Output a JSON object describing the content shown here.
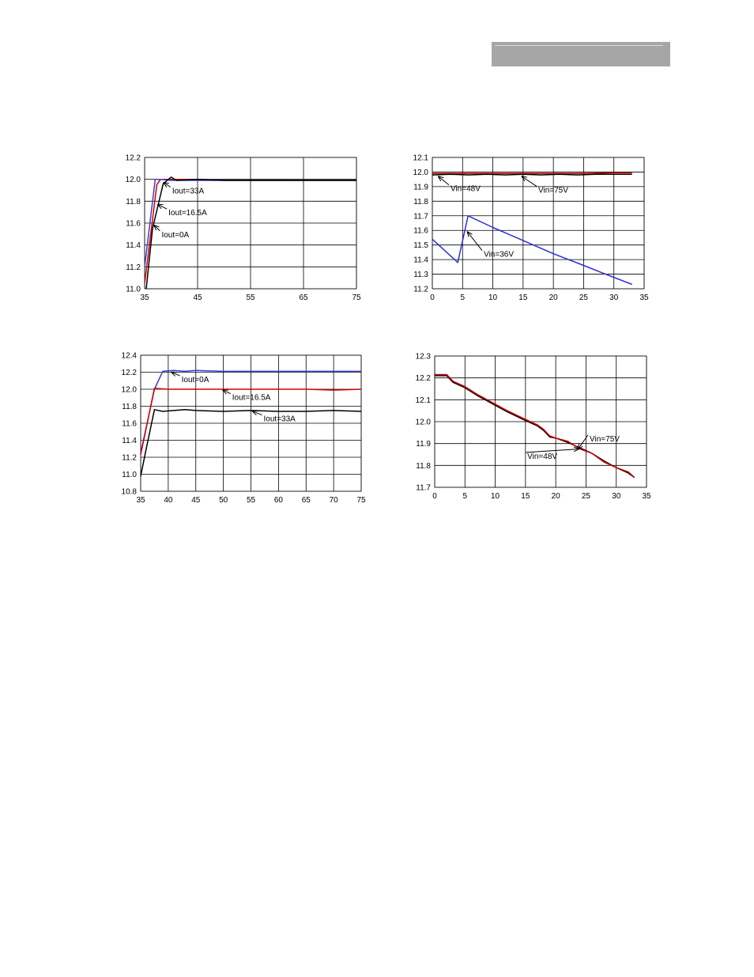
{
  "page": {
    "header_bar_color": "#a6a6a6"
  },
  "chart_data": [
    {
      "id": "chart-1",
      "type": "line",
      "xlim": [
        35,
        75
      ],
      "ylim": [
        11.0,
        12.2
      ],
      "xticks": [
        "35",
        "45",
        "55",
        "65",
        "75"
      ],
      "yticks": [
        "11.0",
        "11.2",
        "11.4",
        "11.6",
        "11.8",
        "12.0",
        "12.2"
      ],
      "grid": true,
      "series": [
        {
          "color": "#d00000",
          "x": [
            35,
            37.3,
            38,
            40,
            45,
            50,
            55,
            60,
            65,
            70,
            75
          ],
          "y": [
            11.05,
            11.95,
            12.0,
            12.0,
            12.0,
            11.99,
            11.99,
            11.99,
            11.99,
            11.99,
            11.99
          ]
        },
        {
          "color": "#3b3bd6",
          "x": [
            35,
            37.0,
            38,
            40,
            45,
            50,
            55,
            60,
            65,
            70,
            75
          ],
          "y": [
            11.2,
            12.0,
            12.0,
            11.99,
            11.99,
            11.99,
            11.99,
            11.99,
            11.99,
            11.99,
            11.99
          ]
        },
        {
          "color": "#000000",
          "x": [
            35.3,
            36.5,
            38.5,
            40,
            41,
            45,
            50,
            55,
            60,
            65,
            70,
            75
          ],
          "y": [
            11.0,
            11.55,
            11.96,
            12.02,
            11.99,
            12.0,
            11.99,
            11.99,
            11.99,
            11.99,
            11.99,
            11.99
          ]
        }
      ],
      "annotations": [
        {
          "text": "Iout=33A",
          "x": 40.2,
          "y": 11.9,
          "ax": 38.6,
          "ay": 11.97
        },
        {
          "text": "Iout=16.5A",
          "x": 39.5,
          "y": 11.7,
          "ax": 37.5,
          "ay": 11.77
        },
        {
          "text": "Iout=0A",
          "x": 38.2,
          "y": 11.5,
          "ax": 36.8,
          "ay": 11.58
        }
      ]
    },
    {
      "id": "chart-2",
      "type": "line",
      "xlim": [
        0,
        35
      ],
      "ylim": [
        11.2,
        12.1
      ],
      "xticks": [
        "0",
        "5",
        "10",
        "15",
        "20",
        "25",
        "30",
        "35"
      ],
      "yticks": [
        "11.2",
        "11.3",
        "11.4",
        "11.5",
        "11.6",
        "11.7",
        "11.8",
        "11.9",
        "12.0",
        "12.1"
      ],
      "grid": true,
      "series": [
        {
          "color": "#d00000",
          "x": [
            0,
            5,
            10,
            15,
            20,
            25,
            30,
            33
          ],
          "y": [
            11.99,
            11.99,
            11.99,
            11.99,
            11.99,
            11.99,
            11.995,
            11.995
          ]
        },
        {
          "color": "#000000",
          "x": [
            0,
            3,
            6,
            9,
            12,
            15,
            18,
            21,
            24,
            27,
            30,
            33
          ],
          "y": [
            11.98,
            11.985,
            11.98,
            11.985,
            11.98,
            11.985,
            11.98,
            11.985,
            11.98,
            11.985,
            11.985,
            11.985
          ]
        },
        {
          "color": "#2f2fd2",
          "x": [
            0,
            4.2,
            5.9,
            10,
            15,
            20,
            25,
            28,
            33
          ],
          "y": [
            11.54,
            11.38,
            11.7,
            11.62,
            11.53,
            11.44,
            11.36,
            11.31,
            11.23
          ]
        }
      ],
      "annotations": [
        {
          "text": "Vin=48V",
          "x": 3.0,
          "y": 11.89,
          "ax": 1.0,
          "ay": 11.97
        },
        {
          "text": "Vin=75V",
          "x": 17.5,
          "y": 11.88,
          "ax": 14.8,
          "ay": 11.97
        },
        {
          "text": "Vin=36V",
          "x": 8.5,
          "y": 11.44,
          "ax": 5.8,
          "ay": 11.59
        }
      ]
    },
    {
      "id": "chart-3",
      "type": "line",
      "xlim": [
        35,
        75
      ],
      "ylim": [
        10.8,
        12.4
      ],
      "xticks": [
        "35",
        "40",
        "45",
        "50",
        "55",
        "60",
        "65",
        "70",
        "75"
      ],
      "yticks": [
        "10.8",
        "11.0",
        "11.2",
        "11.4",
        "11.6",
        "11.8",
        "12.0",
        "12.2",
        "12.4"
      ],
      "grid": true,
      "series": [
        {
          "color": "#3b3bd6",
          "x": [
            35,
            37.5,
            39,
            41,
            43,
            45,
            50,
            55,
            60,
            65,
            70,
            75
          ],
          "y": [
            11.25,
            12.0,
            12.21,
            12.22,
            12.21,
            12.22,
            12.21,
            12.21,
            12.21,
            12.21,
            12.21,
            12.21
          ]
        },
        {
          "color": "#d00000",
          "x": [
            35,
            37.5,
            40,
            45,
            50,
            55,
            60,
            65,
            70,
            75
          ],
          "y": [
            11.23,
            12.01,
            12.0,
            12.0,
            12.0,
            12.0,
            12.0,
            12.0,
            11.99,
            12.0
          ]
        },
        {
          "color": "#000000",
          "x": [
            35,
            36,
            37.5,
            39,
            41,
            43,
            45,
            50,
            55,
            60,
            65,
            70,
            75
          ],
          "y": [
            10.98,
            11.3,
            11.76,
            11.74,
            11.75,
            11.76,
            11.75,
            11.74,
            11.75,
            11.74,
            11.74,
            11.75,
            11.74
          ]
        }
      ],
      "annotations": [
        {
          "text": "Iout=0A",
          "x": 42.4,
          "y": 12.12,
          "ax": 40.6,
          "ay": 12.2
        },
        {
          "text": "Iout=16.5A",
          "x": 51.6,
          "y": 11.91,
          "ax": 49.9,
          "ay": 11.99
        },
        {
          "text": "Iout=33A",
          "x": 57.3,
          "y": 11.66,
          "ax": 55.3,
          "ay": 11.74
        }
      ]
    },
    {
      "id": "chart-4",
      "type": "line",
      "xlim": [
        0,
        35
      ],
      "ylim": [
        11.7,
        12.3
      ],
      "xticks": [
        "0",
        "5",
        "10",
        "15",
        "20",
        "25",
        "30",
        "35"
      ],
      "yticks": [
        "11.7",
        "11.8",
        "11.9",
        "12.0",
        "12.1",
        "12.2",
        "12.3"
      ],
      "grid": true,
      "series": [
        {
          "color": "#000000",
          "x": [
            0,
            2,
            3,
            5,
            7,
            9,
            10,
            12,
            15,
            17,
            18,
            19,
            20,
            22,
            24,
            26,
            28,
            30,
            32,
            33
          ],
          "y": [
            12.21,
            12.21,
            12.18,
            12.155,
            12.12,
            12.09,
            12.075,
            12.045,
            12.005,
            11.98,
            11.96,
            11.93,
            11.925,
            11.905,
            11.88,
            11.855,
            11.82,
            11.79,
            11.765,
            11.745
          ]
        },
        {
          "color": "#d00000",
          "x": [
            0,
            2,
            3,
            5,
            7,
            9,
            10,
            12,
            15,
            17,
            18,
            19,
            20,
            22,
            24,
            26,
            28,
            30,
            32,
            33
          ],
          "y": [
            12.215,
            12.215,
            12.185,
            12.16,
            12.125,
            12.095,
            12.08,
            12.05,
            12.01,
            11.985,
            11.965,
            11.935,
            11.925,
            11.91,
            11.875,
            11.855,
            11.815,
            11.79,
            11.77,
            11.745
          ]
        }
      ],
      "annotations": [
        {
          "text": "Vin=75V",
          "x": 25.6,
          "y": 11.925,
          "ax": 23.7,
          "ay": 11.875
        },
        {
          "text": "Vin=48V",
          "x": 15.3,
          "y": 11.845,
          "ax": 23.8,
          "ay": 11.875
        }
      ]
    }
  ]
}
